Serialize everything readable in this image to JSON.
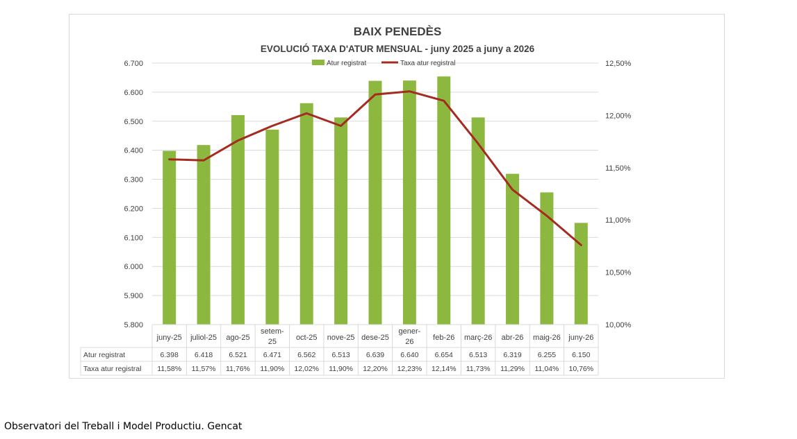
{
  "chart_data": {
    "type": "bar",
    "title": "BAIX PENEDÈS",
    "subtitle": "EVOLUCIÓ TAXA D'ATUR MENSUAL - juny 2025 a juny a 2026",
    "categories": [
      [
        "juny-25"
      ],
      [
        "juliol-25"
      ],
      [
        "ago-25"
      ],
      [
        "setem-",
        "25"
      ],
      [
        "oct-25"
      ],
      [
        "nove-25"
      ],
      [
        "dese-25"
      ],
      [
        "gener-",
        "26"
      ],
      [
        "feb-26"
      ],
      [
        "març-26"
      ],
      [
        "abr-26"
      ],
      [
        "maig-26"
      ],
      [
        "juny-26"
      ]
    ],
    "series": [
      {
        "name": "Atur registrat",
        "type": "bar",
        "axis": "left",
        "color": "#8cb840",
        "values": [
          6398,
          6418,
          6521,
          6471,
          6562,
          6513,
          6639,
          6640,
          6654,
          6513,
          6319,
          6255,
          6150
        ],
        "labels": [
          "6.398",
          "6.418",
          "6.521",
          "6.471",
          "6.562",
          "6.513",
          "6.639",
          "6.640",
          "6.654",
          "6.513",
          "6.319",
          "6.255",
          "6.150"
        ]
      },
      {
        "name": "Taxa atur registral",
        "type": "line",
        "axis": "right",
        "color": "#a52a1f",
        "values": [
          11.58,
          11.57,
          11.76,
          11.9,
          12.02,
          11.9,
          12.2,
          12.23,
          12.14,
          11.73,
          11.29,
          11.04,
          10.76
        ],
        "labels": [
          "11,58%",
          "11,57%",
          "11,76%",
          "11,90%",
          "12,02%",
          "11,90%",
          "12,20%",
          "12,23%",
          "12,14%",
          "11,73%",
          "11,29%",
          "11,04%",
          "10,76%"
        ]
      }
    ],
    "y_left": {
      "ylim": [
        5800,
        6700
      ],
      "ticks": [
        6700,
        6600,
        6500,
        6400,
        6300,
        6200,
        6100,
        6000,
        5900,
        5800
      ],
      "tick_labels": [
        "6.700",
        "6.600",
        "6.500",
        "6.400",
        "6.300",
        "6.200",
        "6.100",
        "6.000",
        "5.900",
        "5.800"
      ]
    },
    "y_right": {
      "ylim": [
        10.0,
        12.5
      ],
      "ticks": [
        12.5,
        12.0,
        11.5,
        11.0,
        10.5,
        10.0
      ],
      "tick_labels": [
        "12,50%",
        "12,00%",
        "11,50%",
        "11,00%",
        "10,50%",
        "10,00%"
      ]
    },
    "grid": true,
    "legend": "top-center",
    "data_table": true
  },
  "footer": {
    "source": "Observatori del Treball i Model Productiu. Gencat"
  }
}
